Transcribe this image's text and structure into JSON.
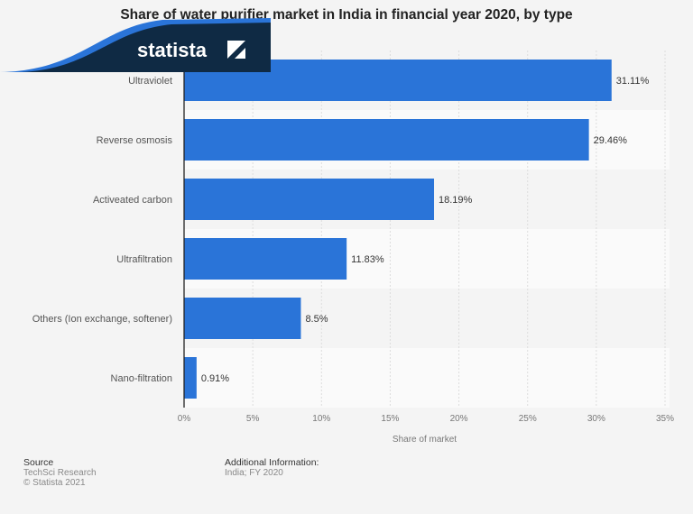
{
  "chart_data": {
    "type": "bar",
    "orientation": "horizontal",
    "title": "Share of water purifier market in India in financial year 2020, by type",
    "categories": [
      "Ultraviolet",
      "Reverse osmosis",
      "Activeated carbon",
      "Ultrafiltration",
      "Others (Ion exchange, softener)",
      "Nano-filtration"
    ],
    "values": [
      31.11,
      29.46,
      18.19,
      11.83,
      8.5,
      0.91
    ],
    "data_labels": [
      "31.11%",
      "29.46%",
      "18.19%",
      "11.83%",
      "8.5%",
      "0.91%"
    ],
    "xlabel": "Share of market",
    "ylabel": "",
    "xlim": [
      0,
      35
    ],
    "xticks": [
      "0%",
      "5%",
      "10%",
      "15%",
      "20%",
      "25%",
      "30%",
      "35%"
    ],
    "grid": true,
    "bar_color": "#2a74d8"
  },
  "footer": {
    "source_heading": "Source",
    "source": "TechSci Research",
    "copyright": "© Statista 2021",
    "info_heading": "Additional Information:",
    "info": "India; FY 2020",
    "brand": "statista"
  }
}
